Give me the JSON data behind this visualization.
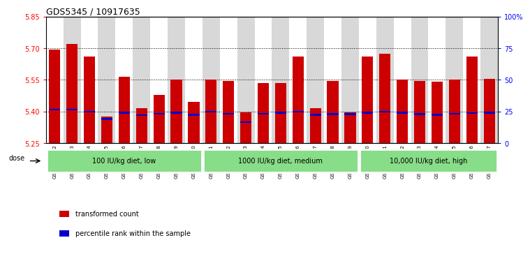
{
  "title": "GDS5345 / 10917635",
  "samples": [
    "GSM1502412",
    "GSM1502413",
    "GSM1502414",
    "GSM1502415",
    "GSM1502416",
    "GSM1502417",
    "GSM1502418",
    "GSM1502419",
    "GSM1502420",
    "GSM1502421",
    "GSM1502422",
    "GSM1502423",
    "GSM1502424",
    "GSM1502425",
    "GSM1502426",
    "GSM1502427",
    "GSM1502428",
    "GSM1502429",
    "GSM1502430",
    "GSM1502431",
    "GSM1502432",
    "GSM1502433",
    "GSM1502434",
    "GSM1502435",
    "GSM1502436",
    "GSM1502437"
  ],
  "bar_tops": [
    5.695,
    5.72,
    5.66,
    5.375,
    5.565,
    5.415,
    5.48,
    5.55,
    5.445,
    5.55,
    5.545,
    5.395,
    5.535,
    5.535,
    5.66,
    5.415,
    5.545,
    5.395,
    5.66,
    5.675,
    5.55,
    5.545,
    5.54,
    5.55,
    5.66,
    5.555
  ],
  "blue_markers": [
    5.41,
    5.41,
    5.4,
    5.365,
    5.395,
    5.383,
    5.39,
    5.395,
    5.385,
    5.4,
    5.39,
    5.35,
    5.39,
    5.395,
    5.4,
    5.385,
    5.388,
    5.388,
    5.395,
    5.4,
    5.395,
    5.388,
    5.385,
    5.39,
    5.392,
    5.395
  ],
  "bar_base": 5.25,
  "ylim": [
    5.25,
    5.85
  ],
  "yticks": [
    5.25,
    5.4,
    5.55,
    5.7,
    5.85
  ],
  "right_ytick_vals": [
    0,
    25,
    50,
    75,
    100
  ],
  "right_ylabels": [
    "0",
    "25",
    "50",
    "75",
    "100%"
  ],
  "dotted_lines": [
    5.4,
    5.55,
    5.7
  ],
  "bar_color": "#cc0000",
  "blue_color": "#0000cc",
  "groups": [
    {
      "label": "100 IU/kg diet, low",
      "start": 0,
      "end": 9
    },
    {
      "label": "1000 IU/kg diet, medium",
      "start": 9,
      "end": 18
    },
    {
      "label": "10,000 IU/kg diet, high",
      "start": 18,
      "end": 26
    }
  ],
  "group_color": "#88dd88",
  "legend_items": [
    {
      "color": "#cc0000",
      "label": "transformed count"
    },
    {
      "color": "#0000cc",
      "label": "percentile rank within the sample"
    }
  ],
  "dose_label": "dose",
  "tick_bg_color": "#d8d8d8"
}
